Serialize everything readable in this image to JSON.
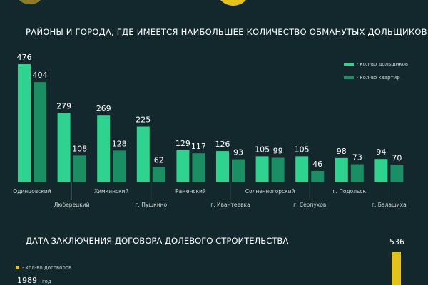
{
  "chart_data": {
    "type": "bar",
    "title": "РАЙОНЫ И ГОРОДА, ГДЕ ИМЕЕТСЯ НАИБОЛЬШЕЕ КОЛИЧЕСТВО ОБМАНУТЫХ ДОЛЬЩИКОВ",
    "categories": [
      "Одинцовский",
      "Люберецкий",
      "Химкинский",
      "г. Пушкино",
      "Раменский",
      "г. Ивантеевка",
      "Солнечногорский",
      "г. Серпухов",
      "г. Подольск",
      "г. Балашиха"
    ],
    "series": [
      {
        "name": "- кол-во дольщиков",
        "values": [
          476,
          279,
          269,
          225,
          129,
          126,
          105,
          105,
          98,
          94
        ],
        "color": "#2fd390"
      },
      {
        "name": "- кол-во квартир",
        "values": [
          404,
          108,
          128,
          62,
          117,
          93,
          99,
          46,
          73,
          70
        ],
        "color": "#1a8f63"
      }
    ],
    "ylim": [
      0,
      500
    ],
    "grid": false,
    "legend": "top-right"
  },
  "section2": {
    "title": "ДАТА ЗАКЛЮЧЕНИЯ ДОГОВОРА ДОЛЕВОГО СТРОИТЕЛЬСТВА",
    "legend_label": "- кол-во договоров",
    "year": "1989",
    "year_suffix": " - год",
    "value": "536",
    "color": "#e3c21a"
  }
}
